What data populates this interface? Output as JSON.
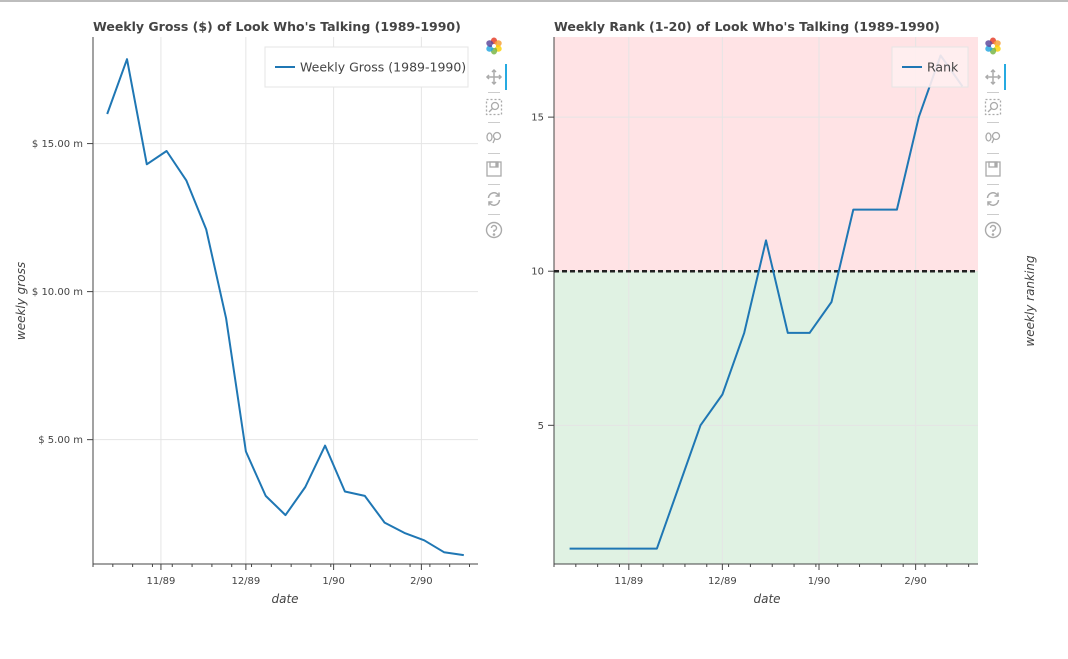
{
  "toolbar": {
    "tools": [
      "bokeh-logo-icon",
      "pan-icon",
      "box-zoom-icon",
      "wheel-zoom-icon",
      "save-icon",
      "reset-icon",
      "help-icon"
    ]
  },
  "colors": {
    "line": "#1f77b4",
    "above_threshold": "#ffe3e5",
    "below_threshold": "#e0f2e3",
    "threshold": "#222222",
    "grid": "#e5e5e5",
    "axis": "#444444"
  },
  "chart_data": [
    {
      "type": "line",
      "title": "Weekly Gross ($) of Look Who's Talking (1989-1990)",
      "xlabel": "date",
      "ylabel": "weekly gross",
      "x_tick_labels": [
        "11/89",
        "12/89",
        "1/90",
        "2/90"
      ],
      "y_tick_labels": [
        "$ 5.00 m",
        "$ 10.00 m",
        "$ 15.00 m"
      ],
      "y_tick_values": [
        5,
        10,
        15
      ],
      "y_unit": "million USD",
      "ylim": [
        0.8,
        18.6
      ],
      "grid": true,
      "legend_position": "top-right",
      "x": [
        "1989-10-13",
        "1989-10-20",
        "1989-10-27",
        "1989-11-03",
        "1989-11-10",
        "1989-11-17",
        "1989-11-24",
        "1989-12-01",
        "1989-12-08",
        "1989-12-15",
        "1989-12-22",
        "1989-12-29",
        "1990-01-05",
        "1990-01-12",
        "1990-01-19",
        "1990-01-26",
        "1990-02-02",
        "1990-02-09",
        "1990-02-16"
      ],
      "series": [
        {
          "name": "Weekly Gross (1989-1990)",
          "values": [
            16.0,
            17.85,
            14.3,
            14.75,
            13.75,
            12.1,
            9.1,
            4.6,
            3.1,
            2.45,
            3.4,
            4.8,
            3.25,
            3.1,
            2.2,
            1.85,
            1.6,
            1.2,
            1.1
          ]
        }
      ]
    },
    {
      "type": "line",
      "title": "Weekly Rank (1-20) of Look Who's Talking (1989-1990)",
      "xlabel": "date",
      "ylabel": "weekly ranking",
      "x_tick_labels": [
        "11/89",
        "12/89",
        "1/90",
        "2/90"
      ],
      "y_tick_labels": [
        "5",
        "10",
        "15"
      ],
      "y_tick_values": [
        5,
        10,
        15
      ],
      "ylim": [
        0.5,
        17.6
      ],
      "threshold": 10,
      "grid": true,
      "legend_position": "top-right",
      "x": [
        "1989-10-13",
        "1989-10-20",
        "1989-10-27",
        "1989-11-03",
        "1989-11-10",
        "1989-11-17",
        "1989-11-24",
        "1989-12-01",
        "1989-12-08",
        "1989-12-15",
        "1989-12-22",
        "1989-12-29",
        "1990-01-05",
        "1990-01-12",
        "1990-01-19",
        "1990-01-26",
        "1990-02-02",
        "1990-02-09",
        "1990-02-16"
      ],
      "series": [
        {
          "name": "Rank",
          "values": [
            1,
            1,
            1,
            1,
            1,
            3,
            5,
            6,
            8,
            11,
            8,
            8,
            9,
            12,
            12,
            12,
            15,
            17,
            16
          ]
        }
      ]
    }
  ]
}
